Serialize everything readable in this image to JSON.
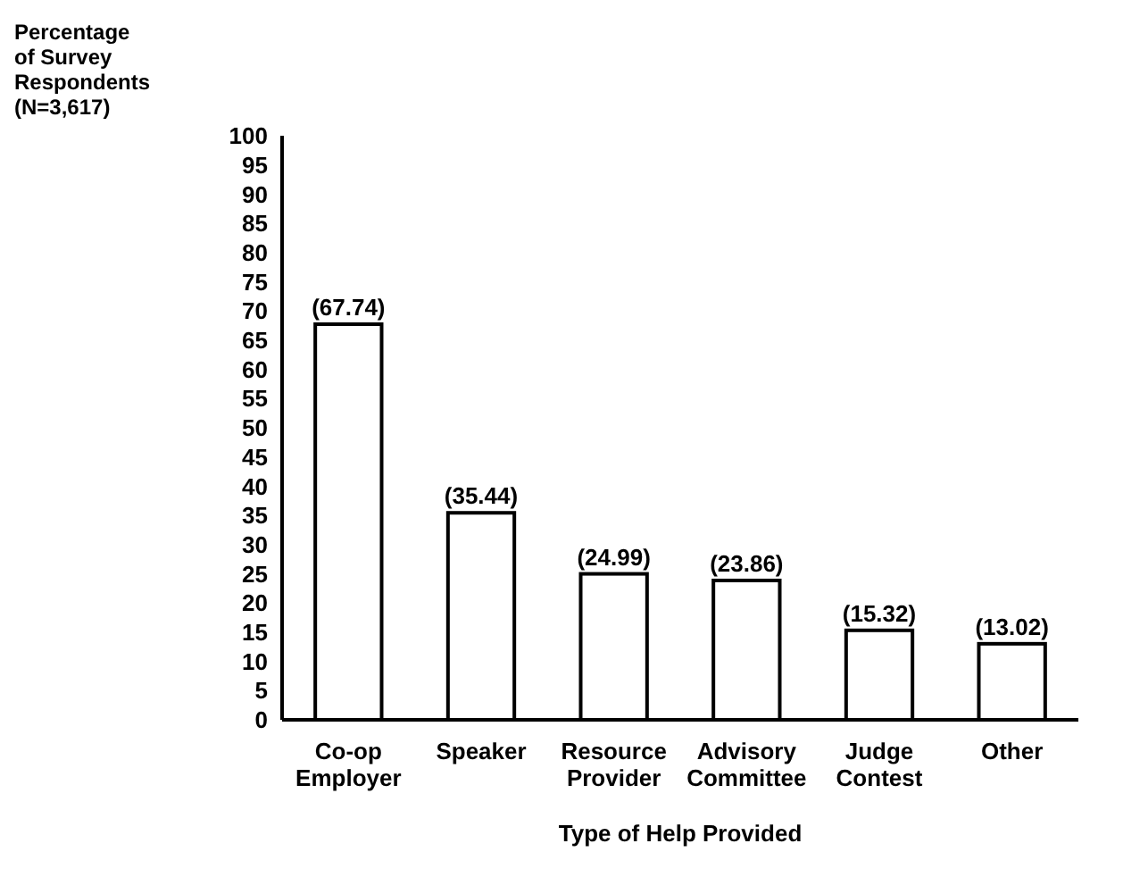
{
  "chart_data": {
    "type": "bar",
    "xlabel": "Type of Help Provided",
    "ylabel": "Percentage of Survey Respondents (N=3,617)",
    "categories": [
      "Co-op Employer",
      "Speaker",
      "Resource Provider",
      "Advisory Committee",
      "Judge Contest",
      "Other"
    ],
    "values": [
      67.74,
      35.44,
      24.99,
      23.86,
      15.32,
      13.02
    ],
    "value_labels": [
      "(67.74)",
      "(35.44)",
      "(24.99)",
      "(23.86)",
      "(15.32)",
      "(13.02)"
    ],
    "color": "#ffffff",
    "ylim": [
      0,
      100
    ],
    "yticks": [
      0,
      5,
      10,
      15,
      20,
      25,
      30,
      35,
      40,
      45,
      50,
      55,
      60,
      65,
      70,
      75,
      80,
      85,
      90,
      95,
      100
    ],
    "grid": false
  }
}
